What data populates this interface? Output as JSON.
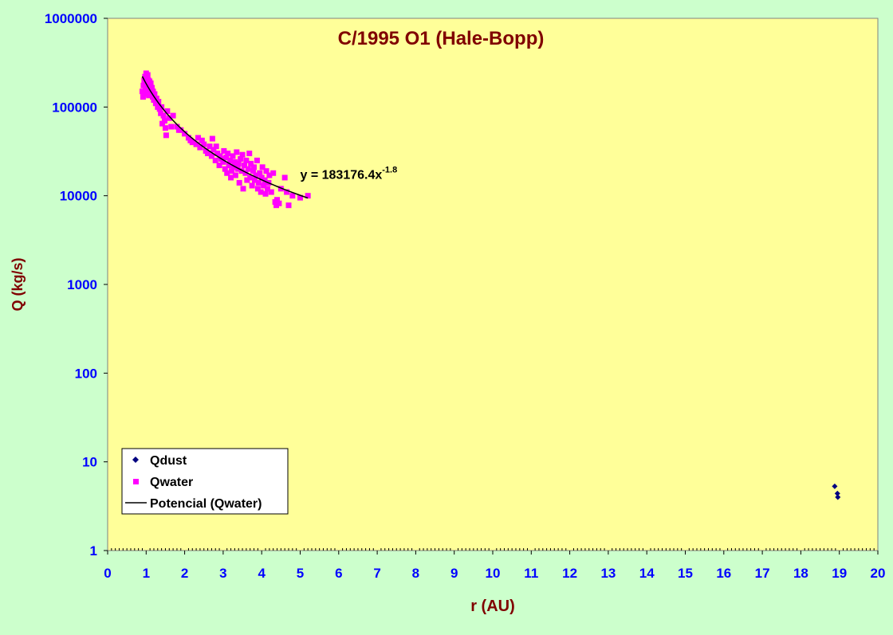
{
  "chart_data": {
    "type": "scatter",
    "title": "C/1995 O1 (Hale-Bopp)",
    "xlabel": "r (AU)",
    "ylabel": "Q (kg/s)",
    "xlim": [
      0,
      20
    ],
    "ylim": [
      1,
      1000000
    ],
    "y_scale": "log",
    "x_ticks": [
      0,
      1,
      2,
      3,
      4,
      5,
      6,
      7,
      8,
      9,
      10,
      11,
      12,
      13,
      14,
      15,
      16,
      17,
      18,
      19,
      20
    ],
    "y_ticks": [
      {
        "value": 1,
        "label": "1"
      },
      {
        "value": 10,
        "label": "10"
      },
      {
        "value": 100,
        "label": "100"
      },
      {
        "value": 1000,
        "label": "1000"
      },
      {
        "value": 10000,
        "label": "10000"
      },
      {
        "value": 100000,
        "label": "100000"
      },
      {
        "value": 1000000,
        "label": "1000000"
      }
    ],
    "grid": false,
    "legend_position": "bottom-left",
    "colors": {
      "plot_background": "#ffff99",
      "page_background": "#ccffcc",
      "title": "#800000",
      "axis_label": "#800000",
      "tick_label": "#0000ff",
      "dust": "#000080",
      "water": "#ff00ff",
      "fit": "#000000"
    },
    "series": [
      {
        "name": "Qdust",
        "marker": "diamond",
        "points": [
          [
            18.88,
            5.3
          ],
          [
            18.95,
            4.4
          ],
          [
            18.96,
            4.0
          ]
        ]
      },
      {
        "name": "Qwater",
        "marker": "square",
        "points": [
          [
            0.9,
            150000
          ],
          [
            0.92,
            130000
          ],
          [
            0.93,
            175000
          ],
          [
            0.95,
            200000
          ],
          [
            0.96,
            140000
          ],
          [
            0.97,
            220000
          ],
          [
            0.98,
            160000
          ],
          [
            0.99,
            190000
          ],
          [
            1.0,
            240000
          ],
          [
            1.01,
            170000
          ],
          [
            1.02,
            210000
          ],
          [
            1.03,
            150000
          ],
          [
            1.04,
            230000
          ],
          [
            1.05,
            180000
          ],
          [
            1.06,
            200000
          ],
          [
            1.07,
            135000
          ],
          [
            1.08,
            170000
          ],
          [
            1.09,
            195000
          ],
          [
            1.1,
            155000
          ],
          [
            1.12,
            185000
          ],
          [
            1.13,
            140000
          ],
          [
            1.15,
            165000
          ],
          [
            1.17,
            130000
          ],
          [
            1.18,
            150000
          ],
          [
            1.2,
            120000
          ],
          [
            1.22,
            140000
          ],
          [
            1.25,
            110000
          ],
          [
            1.27,
            125000
          ],
          [
            1.3,
            100000
          ],
          [
            1.32,
            115000
          ],
          [
            1.35,
            95000
          ],
          [
            1.38,
            85000
          ],
          [
            1.4,
            100000
          ],
          [
            1.42,
            65000
          ],
          [
            1.45,
            80000
          ],
          [
            1.48,
            70000
          ],
          [
            1.5,
            58000
          ],
          [
            1.52,
            48000
          ],
          [
            1.55,
            90000
          ],
          [
            1.6,
            75000
          ],
          [
            1.65,
            60000
          ],
          [
            1.7,
            80000
          ],
          [
            1.8,
            60000
          ],
          [
            1.85,
            55000
          ],
          [
            1.9,
            55000
          ],
          [
            2.0,
            50000
          ],
          [
            2.1,
            45000
          ],
          [
            2.15,
            42000
          ],
          [
            2.2,
            40000
          ],
          [
            2.3,
            38000
          ],
          [
            2.35,
            45000
          ],
          [
            2.4,
            35000
          ],
          [
            2.45,
            42000
          ],
          [
            2.5,
            38000
          ],
          [
            2.55,
            32000
          ],
          [
            2.6,
            30000
          ],
          [
            2.65,
            36000
          ],
          [
            2.7,
            28000
          ],
          [
            2.72,
            44000
          ],
          [
            2.75,
            33000
          ],
          [
            2.8,
            25000
          ],
          [
            2.82,
            36000
          ],
          [
            2.85,
            30000
          ],
          [
            2.9,
            22000
          ],
          [
            2.92,
            28000
          ],
          [
            2.95,
            26000
          ],
          [
            3.0,
            24000
          ],
          [
            3.02,
            32000
          ],
          [
            3.05,
            20000
          ],
          [
            3.08,
            27000
          ],
          [
            3.1,
            18000
          ],
          [
            3.12,
            30000
          ],
          [
            3.15,
            22000
          ],
          [
            3.18,
            25000
          ],
          [
            3.2,
            16000
          ],
          [
            3.22,
            19000
          ],
          [
            3.25,
            28000
          ],
          [
            3.28,
            21000
          ],
          [
            3.3,
            24000
          ],
          [
            3.32,
            17000
          ],
          [
            3.35,
            31000
          ],
          [
            3.38,
            20000
          ],
          [
            3.4,
            23000
          ],
          [
            3.42,
            14000
          ],
          [
            3.45,
            26000
          ],
          [
            3.48,
            19000
          ],
          [
            3.5,
            29000
          ],
          [
            3.52,
            12000
          ],
          [
            3.55,
            22000
          ],
          [
            3.58,
            18000
          ],
          [
            3.6,
            25000
          ],
          [
            3.62,
            15000
          ],
          [
            3.65,
            20000
          ],
          [
            3.68,
            30000
          ],
          [
            3.7,
            16000
          ],
          [
            3.72,
            23000
          ],
          [
            3.75,
            13000
          ],
          [
            3.78,
            19000
          ],
          [
            3.8,
            21000
          ],
          [
            3.82,
            15000
          ],
          [
            3.85,
            17000
          ],
          [
            3.88,
            25000
          ],
          [
            3.9,
            12000
          ],
          [
            3.92,
            14000
          ],
          [
            3.95,
            18000
          ],
          [
            3.98,
            11000
          ],
          [
            4.0,
            16000
          ],
          [
            4.02,
            21000
          ],
          [
            4.05,
            13000
          ],
          [
            4.08,
            15000
          ],
          [
            4.1,
            10500
          ],
          [
            4.12,
            19000
          ],
          [
            4.15,
            12000
          ],
          [
            4.18,
            14000
          ],
          [
            4.2,
            17000
          ],
          [
            4.25,
            11000
          ],
          [
            4.3,
            18000
          ],
          [
            4.35,
            8500
          ],
          [
            4.38,
            7800
          ],
          [
            4.4,
            9000
          ],
          [
            4.45,
            8200
          ],
          [
            4.5,
            12000
          ],
          [
            4.6,
            16000
          ],
          [
            4.65,
            11000
          ],
          [
            4.7,
            7800
          ],
          [
            4.8,
            10000
          ],
          [
            5.0,
            9500
          ],
          [
            5.2,
            10000
          ]
        ]
      },
      {
        "name": "Potencial (Qwater)",
        "type": "power_fit",
        "coefficient": 183176.4,
        "exponent": -1.8,
        "x_range": [
          0.9,
          5.2
        ]
      }
    ],
    "annotations": [
      {
        "text_main": "y = 183176.4x",
        "text_sup": "-1.8",
        "x": 5.0,
        "y": 15500
      }
    ]
  }
}
